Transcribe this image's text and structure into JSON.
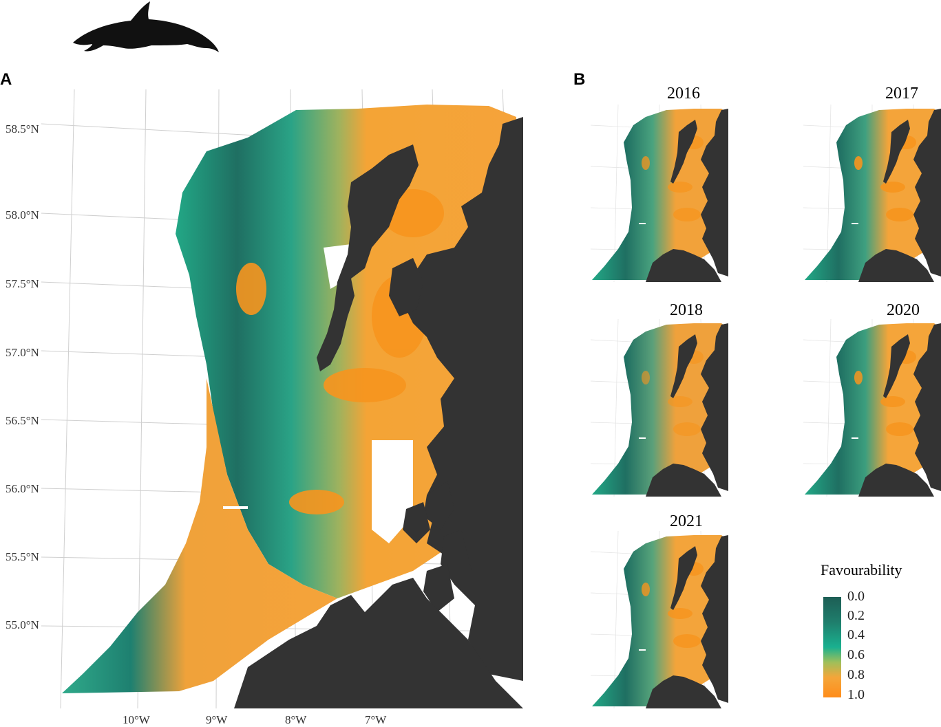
{
  "panels": {
    "a": {
      "letter": "A"
    },
    "b": {
      "letter": "B"
    }
  },
  "icon": {
    "name": "dolphin-silhouette",
    "color": "#111111"
  },
  "map_a": {
    "lat_labels": [
      "58.5°N",
      "58.0°N",
      "57.5°N",
      "57.0°N",
      "56.5°N",
      "56.0°N",
      "55.5°N",
      "55.0°N"
    ],
    "lon_labels": [
      "10°W",
      "9°W",
      "8°W",
      "7°W"
    ]
  },
  "small_maps": [
    {
      "year": "2016"
    },
    {
      "year": "2017"
    },
    {
      "year": "2018"
    },
    {
      "year": "2020"
    },
    {
      "year": "2021"
    }
  ],
  "legend": {
    "title": "Favourability",
    "ticks": [
      "0.0",
      "0.2",
      "0.4",
      "0.6",
      "0.8",
      "1.0"
    ],
    "color_low": "#1d5e55",
    "color_mid": "#19b08f",
    "color_high": "#ff8c1a"
  },
  "colors": {
    "land": "#333333",
    "ocean_low": "#1d6b5f",
    "ocean_mid": "#2fae8c",
    "ocean_high": "#f7a233",
    "grid": "#cccccc"
  }
}
